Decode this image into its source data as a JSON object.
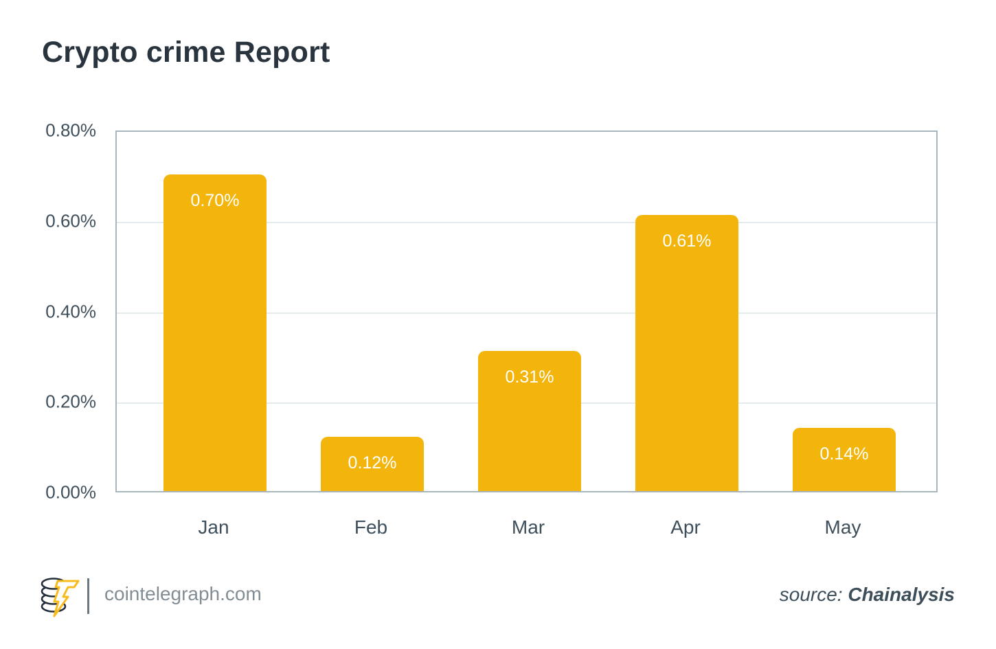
{
  "title": "Crypto crime Report",
  "chart_data": {
    "type": "bar",
    "title": "Crypto crime Report",
    "categories": [
      "Jan",
      "Feb",
      "Mar",
      "Apr",
      "May"
    ],
    "values": [
      0.7,
      0.12,
      0.31,
      0.61,
      0.14
    ],
    "value_labels": [
      "0.70%",
      "0.12%",
      "0.31%",
      "0.61%",
      "0.14%"
    ],
    "xlabel": "",
    "ylabel": "",
    "ylim": [
      0,
      0.8
    ],
    "yticks": [
      {
        "label": "0.00%",
        "value": 0.0
      },
      {
        "label": "0.20%",
        "value": 0.2
      },
      {
        "label": "0.40%",
        "value": 0.4
      },
      {
        "label": "0.60%",
        "value": 0.6
      },
      {
        "label": "0.80%",
        "value": 0.8
      }
    ],
    "grid": "horizontal",
    "legend": "none"
  },
  "footer": {
    "site": "cointelegraph.com",
    "source_prefix": "source: ",
    "source_name": "Chainalysis"
  },
  "colors": {
    "title_text": "#2A343E",
    "axis_text": "#3E4F5B",
    "plot_border": "#A9B5BD",
    "grid_line": "#E4ECEF",
    "bar_fill": "#F3B50B",
    "bar_label": "#FFFFFF",
    "footer_text": "#838D94",
    "source_text": "#3C4E5A",
    "divider": "#6E7880",
    "logo_dark": "#242F3B",
    "logo_accent": "#F7BC1C"
  }
}
